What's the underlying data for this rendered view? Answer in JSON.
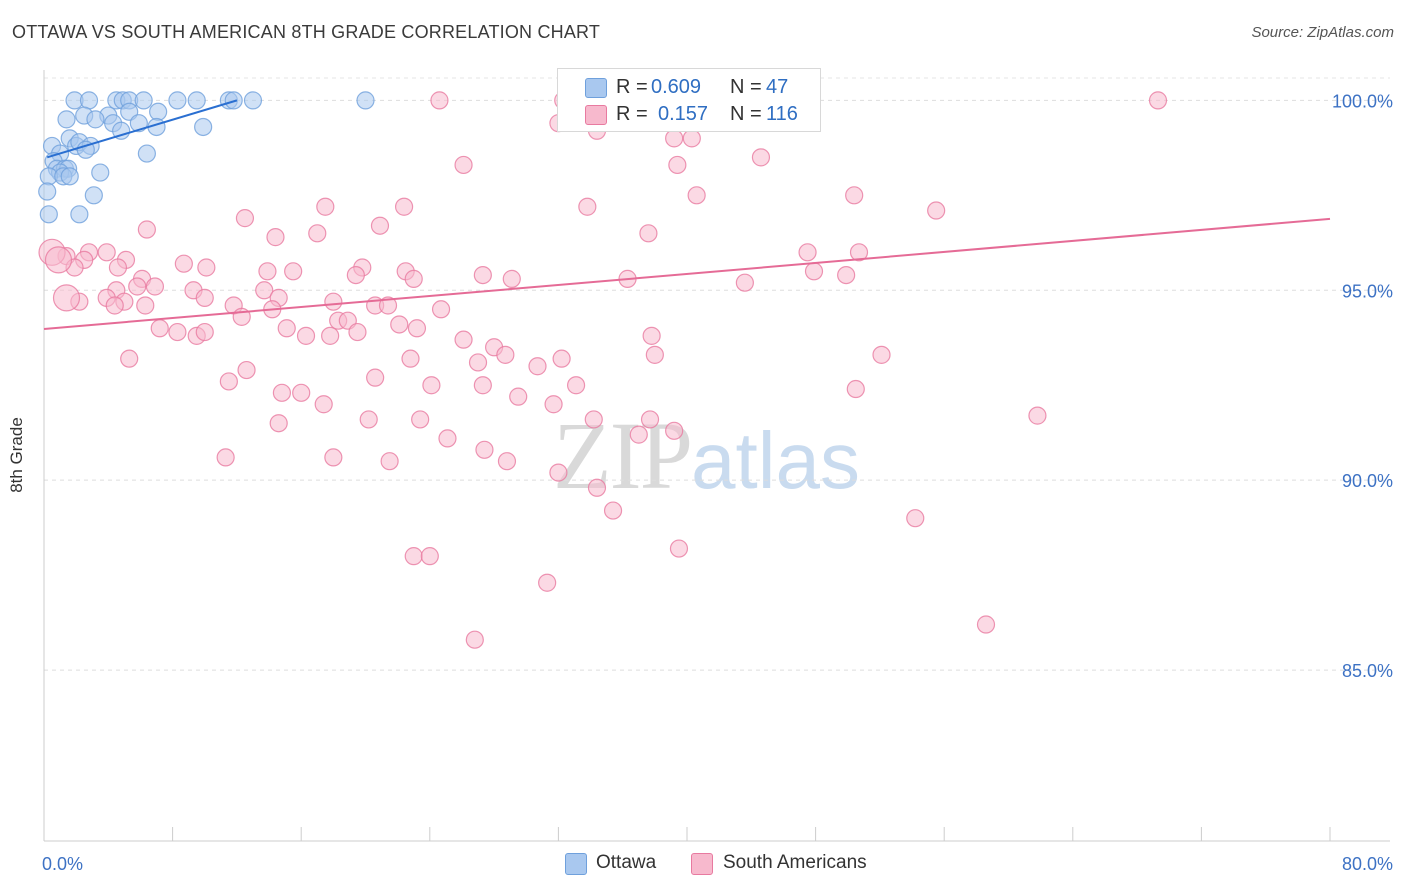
{
  "header": {
    "title": "OTTAWA VS SOUTH AMERICAN 8TH GRADE CORRELATION CHART",
    "source": "Source: ZipAtlas.com"
  },
  "watermark": {
    "zip": "ZIP",
    "atlas": "atlas"
  },
  "legend": {
    "r_label": "R = ",
    "n_label": "N = ",
    "rows": [
      {
        "name": "Ottawa",
        "r": "0.609",
        "n": "47",
        "color": "#6fa0dc",
        "fill": "#a9c8ef",
        "value_color": "#2f6ec2"
      },
      {
        "name": "South Americans",
        "r": "0.157",
        "n": "116",
        "color": "#e87aa0",
        "fill": "#f7b9cd",
        "value_color": "#2f6ec2"
      }
    ]
  },
  "chart_data": {
    "type": "scatter",
    "title": "OTTAWA VS SOUTH AMERICAN 8TH GRADE CORRELATION CHART",
    "xlabel": "",
    "ylabel": "8th Grade",
    "xlim": [
      0,
      80
    ],
    "ylim": [
      80.5,
      100.8
    ],
    "x_tick_labels": [
      {
        "value": 0,
        "label": "0.0%"
      },
      {
        "value": 80,
        "label": "80.0%"
      }
    ],
    "y_tick_labels": [
      {
        "value": 100,
        "label": "100.0%"
      },
      {
        "value": 95,
        "label": "95.0%"
      },
      {
        "value": 90,
        "label": "90.0%"
      },
      {
        "value": 85,
        "label": "85.0%"
      }
    ],
    "x_minor_ticks": [
      0,
      8,
      16,
      24,
      32,
      40,
      48,
      56,
      64,
      72,
      80
    ],
    "grid": true,
    "series": [
      {
        "name": "Ottawa",
        "color": "#6fa0dc",
        "fill": "#a9c8ef",
        "trend": {
          "x": [
            0.2,
            12.0
          ],
          "y": [
            98.5,
            100.0
          ],
          "color": "#2a6fd1"
        },
        "points": [
          [
            1.9,
            100
          ],
          [
            2.8,
            100
          ],
          [
            4.5,
            100
          ],
          [
            4.9,
            100
          ],
          [
            5.3,
            100
          ],
          [
            6.2,
            100
          ],
          [
            8.3,
            100
          ],
          [
            9.5,
            100
          ],
          [
            11.5,
            100
          ],
          [
            11.8,
            100
          ],
          [
            13.0,
            100
          ],
          [
            20.0,
            100
          ],
          [
            2.5,
            99.6
          ],
          [
            4.0,
            99.6
          ],
          [
            5.3,
            99.7
          ],
          [
            7.1,
            99.7
          ],
          [
            1.4,
            99.5
          ],
          [
            3.2,
            99.5
          ],
          [
            4.3,
            99.4
          ],
          [
            5.9,
            99.4
          ],
          [
            7.0,
            99.3
          ],
          [
            4.8,
            99.2
          ],
          [
            9.9,
            99.3
          ],
          [
            1.6,
            99.0
          ],
          [
            2.0,
            98.8
          ],
          [
            2.2,
            98.9
          ],
          [
            2.9,
            98.8
          ],
          [
            0.5,
            98.8
          ],
          [
            2.6,
            98.7
          ],
          [
            1.0,
            98.6
          ],
          [
            6.4,
            98.6
          ],
          [
            0.6,
            98.4
          ],
          [
            0.8,
            98.2
          ],
          [
            1.3,
            98.2
          ],
          [
            1.5,
            98.2
          ],
          [
            1.0,
            98.1
          ],
          [
            3.5,
            98.1
          ],
          [
            0.3,
            98.0
          ],
          [
            1.2,
            98.0
          ],
          [
            1.6,
            98.0
          ],
          [
            0.2,
            97.6
          ],
          [
            3.1,
            97.5
          ],
          [
            0.3,
            97.0
          ],
          [
            2.2,
            97.0
          ]
        ]
      },
      {
        "name": "South Americans",
        "color": "#e87aa0",
        "fill": "#f7b9cd",
        "trend": {
          "x": [
            0,
            80
          ],
          "y": [
            93.98,
            96.88
          ],
          "color": "#e56b96"
        },
        "points": [
          [
            24.6,
            100
          ],
          [
            32.3,
            100
          ],
          [
            41.6,
            100
          ],
          [
            44.8,
            100
          ],
          [
            69.3,
            100
          ],
          [
            32.0,
            99.4
          ],
          [
            34.4,
            99.2
          ],
          [
            35.8,
            99.5
          ],
          [
            39.2,
            99.0
          ],
          [
            40.3,
            99.0
          ],
          [
            40.9,
            99.5
          ],
          [
            47.0,
            99.5
          ],
          [
            44.6,
            98.5
          ],
          [
            39.4,
            98.3
          ],
          [
            26.1,
            98.3
          ],
          [
            40.6,
            97.5
          ],
          [
            50.4,
            97.5
          ],
          [
            33.8,
            97.2
          ],
          [
            17.5,
            97.2
          ],
          [
            22.4,
            97.2
          ],
          [
            55.5,
            97.1
          ],
          [
            12.5,
            96.9
          ],
          [
            20.9,
            96.7
          ],
          [
            6.4,
            96.6
          ],
          [
            14.4,
            96.4
          ],
          [
            17.0,
            96.5
          ],
          [
            37.6,
            96.5
          ],
          [
            47.5,
            96.0
          ],
          [
            2.8,
            96.0
          ],
          [
            3.9,
            96.0
          ],
          [
            1.4,
            95.9
          ],
          [
            2.5,
            95.8
          ],
          [
            5.1,
            95.8
          ],
          [
            1.9,
            95.6
          ],
          [
            4.6,
            95.6
          ],
          [
            19.8,
            95.6
          ],
          [
            8.7,
            95.7
          ],
          [
            10.1,
            95.6
          ],
          [
            13.9,
            95.5
          ],
          [
            15.5,
            95.5
          ],
          [
            19.4,
            95.4
          ],
          [
            22.5,
            95.5
          ],
          [
            23.0,
            95.3
          ],
          [
            27.3,
            95.4
          ],
          [
            29.1,
            95.3
          ],
          [
            36.3,
            95.3
          ],
          [
            43.6,
            95.2
          ],
          [
            47.9,
            95.5
          ],
          [
            49.9,
            95.4
          ],
          [
            50.7,
            96.0
          ],
          [
            6.1,
            95.3
          ],
          [
            13.7,
            95.0
          ],
          [
            4.5,
            95.0
          ],
          [
            5.8,
            95.1
          ],
          [
            6.9,
            95.1
          ],
          [
            9.3,
            95.0
          ],
          [
            14.6,
            94.8
          ],
          [
            18.0,
            94.7
          ],
          [
            20.6,
            94.6
          ],
          [
            24.7,
            94.5
          ],
          [
            3.9,
            94.8
          ],
          [
            5.0,
            94.7
          ],
          [
            6.3,
            94.6
          ],
          [
            10.0,
            94.8
          ],
          [
            11.8,
            94.6
          ],
          [
            14.2,
            94.5
          ],
          [
            18.3,
            94.2
          ],
          [
            21.4,
            94.6
          ],
          [
            2.2,
            94.7
          ],
          [
            4.4,
            94.6
          ],
          [
            12.3,
            94.3
          ],
          [
            15.1,
            94.0
          ],
          [
            18.9,
            94.2
          ],
          [
            22.1,
            94.1
          ],
          [
            23.2,
            94.0
          ],
          [
            26.1,
            93.7
          ],
          [
            7.2,
            94.0
          ],
          [
            8.3,
            93.9
          ],
          [
            9.5,
            93.8
          ],
          [
            10.0,
            93.9
          ],
          [
            16.3,
            93.8
          ],
          [
            17.8,
            93.8
          ],
          [
            19.5,
            93.9
          ],
          [
            28.0,
            93.5
          ],
          [
            22.8,
            93.2
          ],
          [
            27.0,
            93.1
          ],
          [
            28.7,
            93.3
          ],
          [
            30.7,
            93.0
          ],
          [
            32.2,
            93.2
          ],
          [
            37.8,
            93.8
          ],
          [
            38.0,
            93.3
          ],
          [
            11.5,
            92.6
          ],
          [
            16.0,
            92.3
          ],
          [
            17.4,
            92.0
          ],
          [
            20.2,
            91.6
          ],
          [
            23.4,
            91.6
          ],
          [
            25.1,
            91.1
          ],
          [
            27.4,
            90.8
          ],
          [
            28.8,
            90.5
          ],
          [
            5.3,
            93.2
          ],
          [
            12.6,
            92.9
          ],
          [
            14.8,
            92.3
          ],
          [
            14.6,
            91.5
          ],
          [
            20.6,
            92.7
          ],
          [
            24.1,
            92.5
          ],
          [
            27.3,
            92.5
          ],
          [
            29.5,
            92.2
          ],
          [
            33.1,
            92.5
          ],
          [
            31.7,
            92.0
          ],
          [
            34.2,
            91.6
          ],
          [
            37.7,
            91.6
          ],
          [
            39.2,
            91.3
          ],
          [
            37.0,
            91.2
          ],
          [
            11.3,
            90.6
          ],
          [
            18.0,
            90.6
          ],
          [
            21.5,
            90.5
          ],
          [
            32.0,
            90.2
          ],
          [
            34.4,
            89.8
          ],
          [
            35.4,
            89.2
          ],
          [
            50.5,
            92.4
          ],
          [
            52.1,
            93.3
          ],
          [
            54.2,
            89.0
          ],
          [
            61.8,
            91.7
          ],
          [
            58.6,
            86.2
          ],
          [
            23.0,
            88.0
          ],
          [
            24.0,
            88.0
          ],
          [
            31.3,
            87.3
          ],
          [
            26.8,
            85.8
          ],
          [
            39.5,
            88.2
          ]
        ]
      }
    ]
  }
}
